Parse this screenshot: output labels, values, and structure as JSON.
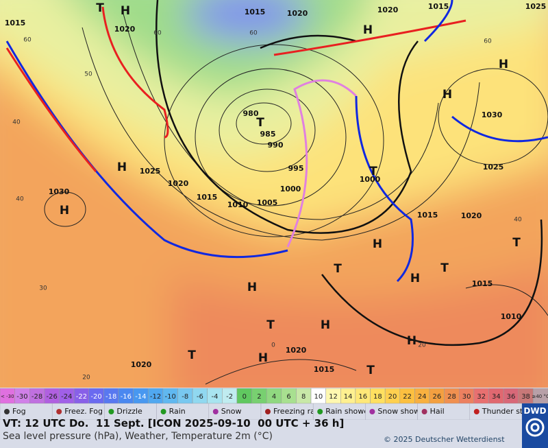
{
  "map": {
    "isobar_labels": [
      "1015",
      "1020",
      "1015",
      "1020",
      "1020",
      "1015",
      "1025",
      "980",
      "985",
      "990",
      "995",
      "1000",
      "1000",
      "1005",
      "1010",
      "1015",
      "1020",
      "1025",
      "1030",
      "1030",
      "1025",
      "1020",
      "1015",
      "1015",
      "1010",
      "1020",
      "1020",
      "1015"
    ],
    "isotherm_labels": [
      "60",
      "60",
      "60",
      "60",
      "50",
      "40",
      "40",
      "40",
      "30",
      "20",
      "20",
      "0"
    ],
    "pressure_centers": [
      "H",
      "H",
      "H",
      "H",
      "H",
      "H",
      "H",
      "H",
      "H",
      "H",
      "H",
      "H",
      "T",
      "T",
      "T",
      "T",
      "T",
      "T",
      "T",
      "T",
      "T"
    ]
  },
  "color_scale": {
    "labels": [
      "< -30",
      "-30",
      "-28",
      "-26",
      "-24",
      "-22",
      "-20",
      "-18",
      "-16",
      "-14",
      "-12",
      "-10",
      "-8",
      "-6",
      "-4",
      "-2",
      "0",
      "2",
      "4",
      "6",
      "8",
      "10",
      "12",
      "14",
      "16",
      "18",
      "20",
      "22",
      "24",
      "26",
      "28",
      "30",
      "32",
      "34",
      "36",
      "38",
      "≥40 °C"
    ],
    "colors": [
      "#e070e0",
      "#d080e8",
      "#c070e0",
      "#b060e0",
      "#a060e8",
      "#8860e8",
      "#6a6af0",
      "#5878f0",
      "#4a88f0",
      "#4898f0",
      "#50a8f0",
      "#60b8f0",
      "#78c8f0",
      "#90d8f0",
      "#a8e4f0",
      "#c0ecf0",
      "#60c860",
      "#78d070",
      "#90d880",
      "#a8e090",
      "#c8e8a8",
      "#ffffff",
      "#fff8b0",
      "#fff090",
      "#ffe878",
      "#ffe060",
      "#ffd050",
      "#fcc040",
      "#f8b040",
      "#f4a040",
      "#f09050",
      "#ec8060",
      "#e87070",
      "#e06870",
      "#d86878",
      "#c87878",
      "#b8a0a8"
    ]
  },
  "legend": [
    "Fog",
    "Freez. Fog",
    "Drizzle",
    "Rain",
    "Snow",
    "Freezing rain",
    "Rain shower",
    "Snow shower",
    "Hail",
    "Thunder storm"
  ],
  "footer": {
    "valid_time": "VT: 12 UTC Do.  11 Sept. [ICON 2025-09-10  00 UTC + 36 h]",
    "description": "Sea level pressure (hPa), Weather, Temperature 2m (°C)",
    "copyright": "© 2025 Deutscher Wetterdienst",
    "logo": "DWD"
  }
}
